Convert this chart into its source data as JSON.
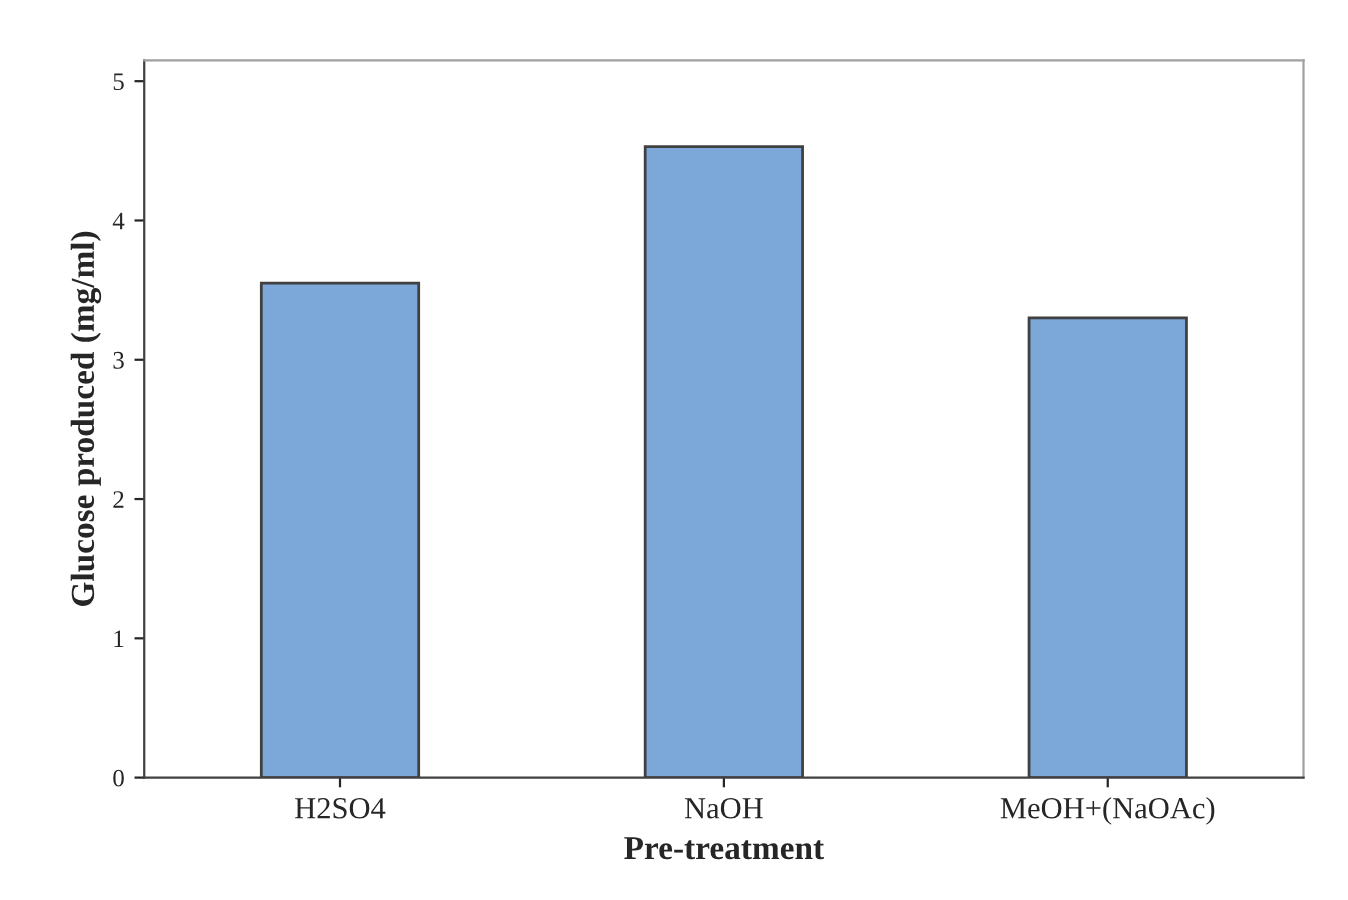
{
  "chart_data": {
    "type": "bar",
    "xlabel": "Pre-treatment",
    "ylabel": "Glucose produced (mg/ml)",
    "categories": [
      "H2SO4",
      "NaOH",
      "MeOH+(NaOAc)"
    ],
    "values": [
      3.55,
      4.53,
      3.3
    ],
    "color": "#7ba7d9",
    "ylim": [
      0,
      5.15
    ],
    "yticks": [
      0,
      1,
      2,
      3,
      4,
      5
    ],
    "grid": false,
    "legend": false
  }
}
